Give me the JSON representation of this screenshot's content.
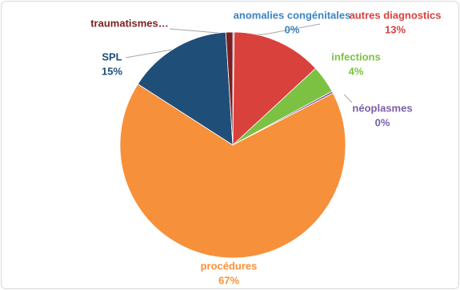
{
  "chart_data": {
    "type": "pie",
    "categories": [
      "anomalies congénitales",
      "autres diagnostics",
      "infections",
      "néoplasmes",
      "procédures",
      "SPL",
      "traumatismes…"
    ],
    "values": [
      0.2,
      13,
      4,
      0.3,
      67,
      15,
      1
    ],
    "value_labels": [
      "0%",
      "13%",
      "4%",
      "0%",
      "67%",
      "15%",
      null
    ],
    "colors": [
      "#4a90d9",
      "#d9413c",
      "#7dc142",
      "#7b5ea7",
      "#f7903a",
      "#1f4e79",
      "#7a1f1f"
    ]
  }
}
